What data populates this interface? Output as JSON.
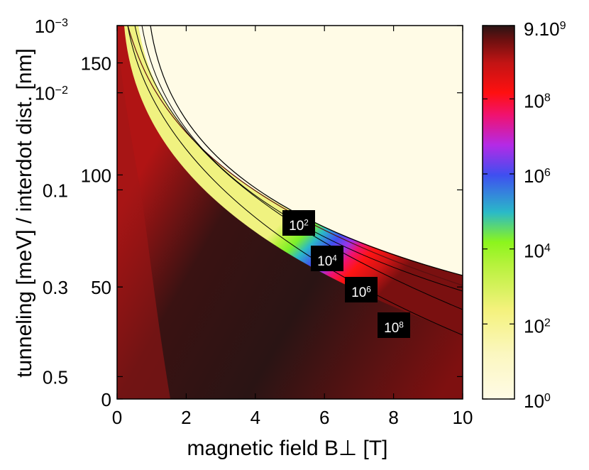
{
  "chart_data": {
    "type": "heatmap",
    "xlabel": "magnetic field B⊥ [T]",
    "ylabel": "tunneling [meV] / interdot dist. [nm]",
    "xlim": [
      0,
      10
    ],
    "x_ticks": [
      "0",
      "2",
      "4",
      "6",
      "8",
      "10"
    ],
    "y_ticks_tunneling": [
      {
        "base": "10",
        "exp": "−3",
        "at_fraction_from_top": 0.0
      },
      {
        "base": "10",
        "exp": "−2",
        "at_fraction_from_top": 0.18
      },
      {
        "base": "0.1",
        "exp": "",
        "at_fraction_from_top": 0.44
      },
      {
        "base": "0.3",
        "exp": "",
        "at_fraction_from_top": 0.7
      },
      {
        "base": "0.5",
        "exp": "",
        "at_fraction_from_top": 0.94
      }
    ],
    "y_ticks_distance": [
      {
        "label": "150",
        "at_fraction_from_top": 0.1
      },
      {
        "label": "100",
        "at_fraction_from_top": 0.4
      },
      {
        "label": "50",
        "at_fraction_from_top": 0.7
      },
      {
        "label": "0",
        "at_fraction_from_top": 1.0
      }
    ],
    "colorbar": {
      "scale": "log",
      "min": 1,
      "max": 9000000000.0,
      "ticks": [
        {
          "base": "10",
          "exp": "0",
          "value": 1
        },
        {
          "base": "10",
          "exp": "2",
          "value": 100
        },
        {
          "base": "10",
          "exp": "4",
          "value": 10000
        },
        {
          "base": "10",
          "exp": "6",
          "value": 1000000
        },
        {
          "base": "10",
          "exp": "8",
          "value": 100000000
        },
        {
          "base": "9.10",
          "exp": "9",
          "value": 9000000000
        }
      ],
      "colors": [
        "#fffbe6",
        "#f4f2a0",
        "#b6f23c",
        "#8cf51c",
        "#2ab9c8",
        "#3f4ff0",
        "#b42ae6",
        "#f01270",
        "#ff1010",
        "#c21414",
        "#6e1010",
        "#2a1414"
      ]
    },
    "contour_labels": [
      {
        "base": "10",
        "exp": "2",
        "x": 5.3
      },
      {
        "base": "10",
        "exp": "4",
        "x": 6.3
      },
      {
        "base": "10",
        "exp": "6",
        "x": 7.3
      },
      {
        "base": "10",
        "exp": "8",
        "x": 8.3
      }
    ]
  }
}
